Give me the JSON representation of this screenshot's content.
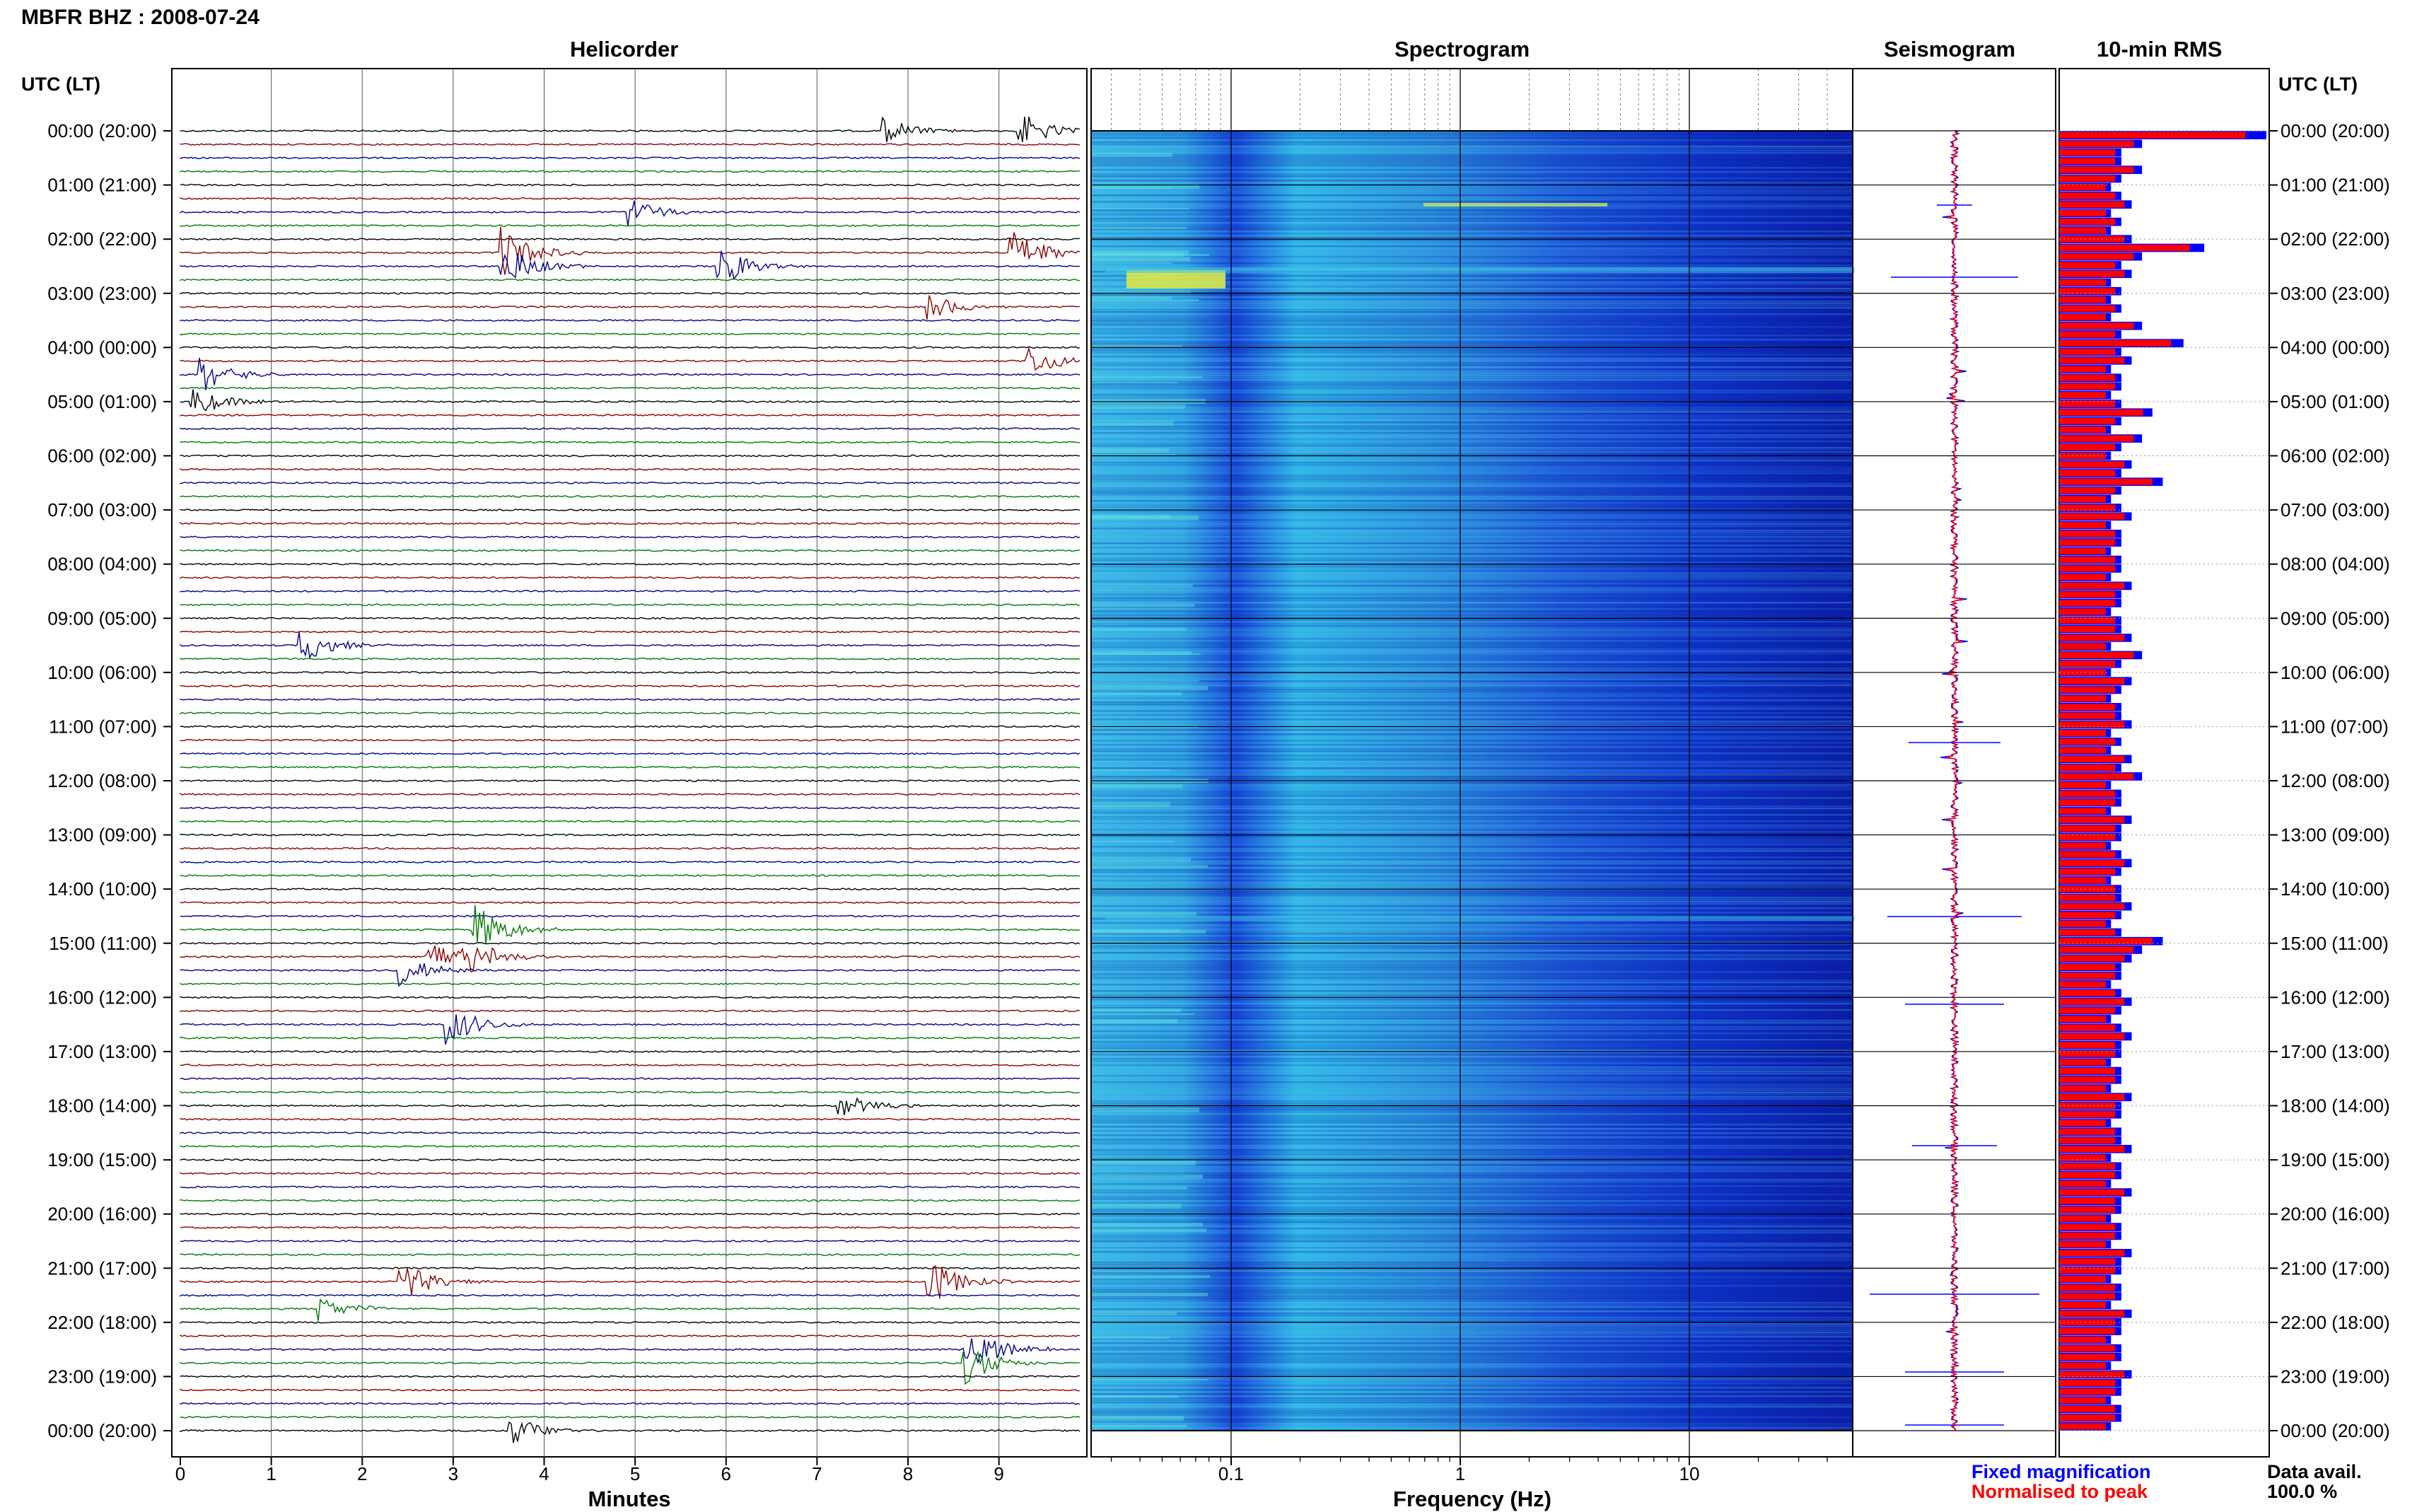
{
  "header": {
    "title": "MBFR BHZ : 2008-07-24",
    "utc_left": "UTC (LT)",
    "utc_right": "UTC (LT)"
  },
  "panels": {
    "helicorder": "Helicorder",
    "spectrogram": "Spectrogram",
    "seismogram": "Seismogram",
    "rms": "10-min RMS"
  },
  "axes": {
    "minutes_label": "Minutes",
    "frequency_label": "Frequency (Hz)",
    "minute_ticks": [
      "0",
      "1",
      "2",
      "3",
      "4",
      "5",
      "6",
      "7",
      "8",
      "9"
    ],
    "freq_ticks": [
      "0.1",
      "1",
      "10"
    ]
  },
  "legend": {
    "fixed": "Fixed magnification",
    "normalised": "Normalised to peak",
    "data_avail_label": "Data avail.",
    "data_avail_value": "100.0 %"
  },
  "colors": {
    "trace_black": "#000000",
    "trace_red": "#8b0000",
    "trace_blue": "#00008b",
    "trace_green": "#007a00",
    "rms_fixed": "#0000ff",
    "rms_normalised": "#ff0000"
  },
  "chart_data": {
    "type": "heatmap",
    "time_labels": [
      "00:00 (20:00)",
      "01:00 (21:00)",
      "02:00 (22:00)",
      "03:00 (23:00)",
      "04:00 (00:00)",
      "05:00 (01:00)",
      "06:00 (02:00)",
      "07:00 (03:00)",
      "08:00 (04:00)",
      "09:00 (05:00)",
      "10:00 (06:00)",
      "11:00 (07:00)",
      "12:00 (08:00)",
      "13:00 (09:00)",
      "14:00 (10:00)",
      "15:00 (11:00)",
      "16:00 (12:00)",
      "17:00 (13:00)",
      "18:00 (14:00)",
      "19:00 (15:00)",
      "20:00 (16:00)",
      "21:00 (17:00)",
      "22:00 (18:00)",
      "23:00 (19:00)",
      "00:00 (20:00)"
    ],
    "helicorder_events": [
      {
        "line": 0,
        "minute": 7.7,
        "amp": 0.5
      },
      {
        "line": 0,
        "minute": 9.2,
        "amp": 0.7
      },
      {
        "line": 6,
        "minute": 4.9,
        "amp": 0.6
      },
      {
        "line": 9,
        "minute": 3.5,
        "amp": 1.0
      },
      {
        "line": 9,
        "minute": 9.1,
        "amp": 1.0
      },
      {
        "line": 10,
        "minute": 3.5,
        "amp": 0.9
      },
      {
        "line": 10,
        "minute": 5.9,
        "amp": 0.8
      },
      {
        "line": 13,
        "minute": 8.2,
        "amp": 0.5
      },
      {
        "line": 17,
        "minute": 9.3,
        "amp": 0.6
      },
      {
        "line": 18,
        "minute": 0.2,
        "amp": 0.7
      },
      {
        "line": 20,
        "minute": 0.1,
        "amp": 0.6
      },
      {
        "line": 38,
        "minute": 1.3,
        "amp": 0.7
      },
      {
        "line": 59,
        "minute": 3.2,
        "amp": 1.0
      },
      {
        "line": 61,
        "minute": 2.7,
        "amp": 0.6
      },
      {
        "line": 61,
        "minute": 3.1,
        "amp": 0.8
      },
      {
        "line": 62,
        "minute": 2.4,
        "amp": 0.6
      },
      {
        "line": 66,
        "minute": 2.9,
        "amp": 0.8
      },
      {
        "line": 72,
        "minute": 7.2,
        "amp": 0.5
      },
      {
        "line": 85,
        "minute": 2.4,
        "amp": 0.8
      },
      {
        "line": 85,
        "minute": 8.2,
        "amp": 0.9
      },
      {
        "line": 87,
        "minute": 1.5,
        "amp": 0.5
      },
      {
        "line": 90,
        "minute": 8.6,
        "amp": 1.0
      },
      {
        "line": 91,
        "minute": 8.6,
        "amp": 0.8
      },
      {
        "line": 96,
        "minute": 3.6,
        "amp": 0.6
      }
    ],
    "rms_fixed": [
      20,
      8,
      6,
      6,
      8,
      6,
      5,
      6,
      7,
      5,
      6,
      5,
      7,
      14,
      8,
      6,
      7,
      5,
      6,
      5,
      6,
      5,
      8,
      6,
      12,
      6,
      7,
      5,
      6,
      6,
      5,
      6,
      9,
      6,
      5,
      8,
      6,
      5,
      7,
      6,
      10,
      6,
      5,
      6,
      7,
      5,
      6,
      6,
      5,
      6,
      6,
      5,
      7,
      6,
      6,
      5,
      6,
      6,
      7,
      5,
      8,
      6,
      5,
      7,
      6,
      5,
      6,
      6,
      7,
      5,
      6,
      5,
      7,
      6,
      8,
      5,
      6,
      6,
      5,
      7,
      6,
      6,
      5,
      6,
      7,
      6,
      5,
      6,
      6,
      7,
      6,
      5,
      6,
      10,
      8,
      7,
      6,
      6,
      5,
      6,
      7,
      6,
      5,
      6,
      7,
      6,
      6,
      5,
      6,
      6,
      5,
      7,
      6,
      6,
      5,
      6,
      6,
      7,
      5,
      6,
      6,
      5,
      7,
      6,
      6,
      5,
      6,
      6,
      5,
      7,
      6,
      6,
      5,
      6,
      6,
      5,
      7,
      6,
      6,
      5,
      6,
      6,
      5,
      7,
      6,
      6,
      5,
      6,
      6,
      5
    ],
    "rms_normalised_scale": 0.9
  }
}
